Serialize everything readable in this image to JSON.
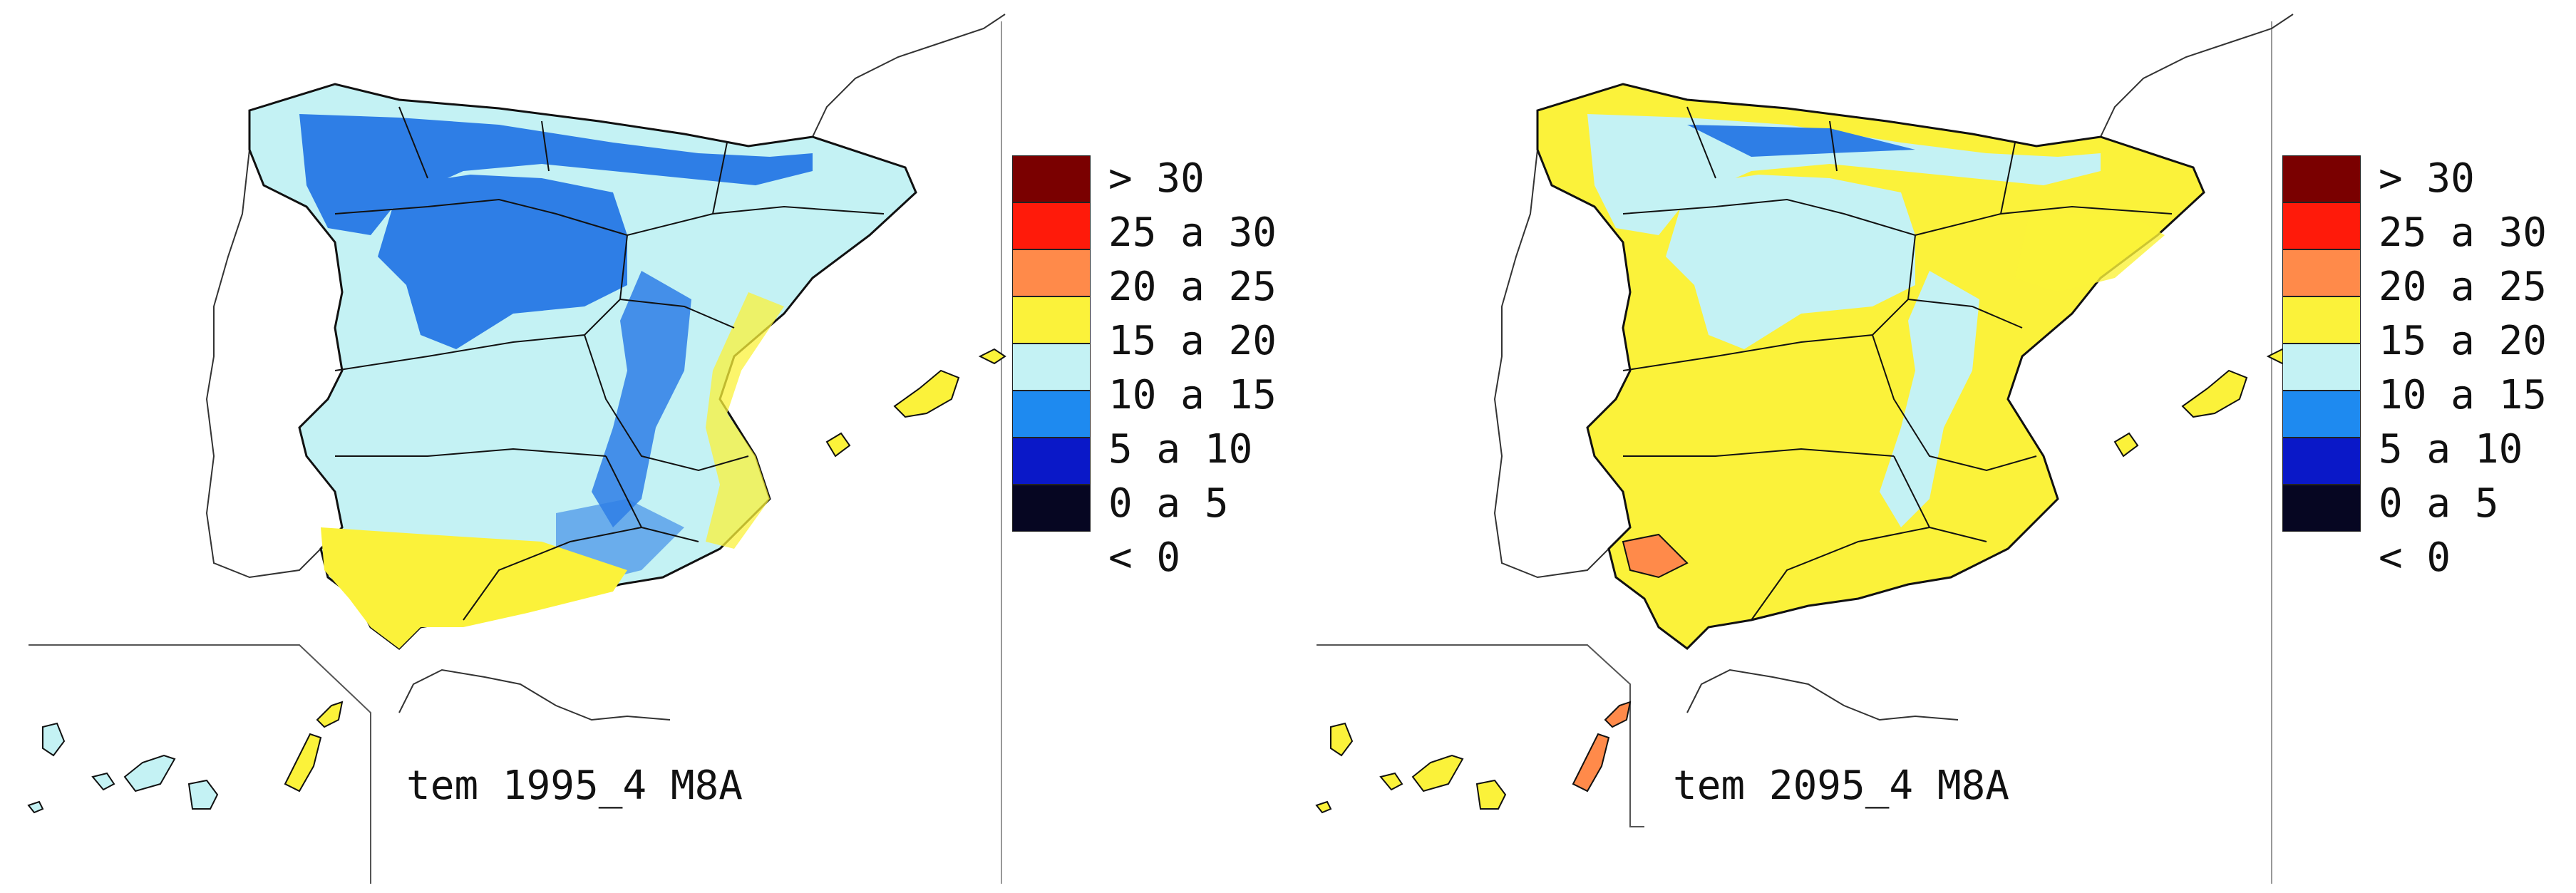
{
  "legend": {
    "classes": [
      {
        "label": "> 30",
        "color": "#7a0000"
      },
      {
        "label": "25 a 30",
        "color": "#ff1a0a"
      },
      {
        "label": "20 a 25",
        "color": "#ff8a4a"
      },
      {
        "label": "15 a 20",
        "color": "#fbf23a"
      },
      {
        "label": "10 a 15",
        "color": "#c4f2f4"
      },
      {
        "label": "5 a 10",
        "color": "#1e8af0"
      },
      {
        "label": "0 a 5",
        "color": "#0a18c8"
      },
      {
        "label": "< 0",
        "color": "#060622"
      }
    ]
  },
  "maps": [
    {
      "caption": "tem 1995_4 M8A"
    },
    {
      "caption": "tem 2095_4 M8A"
    }
  ]
}
